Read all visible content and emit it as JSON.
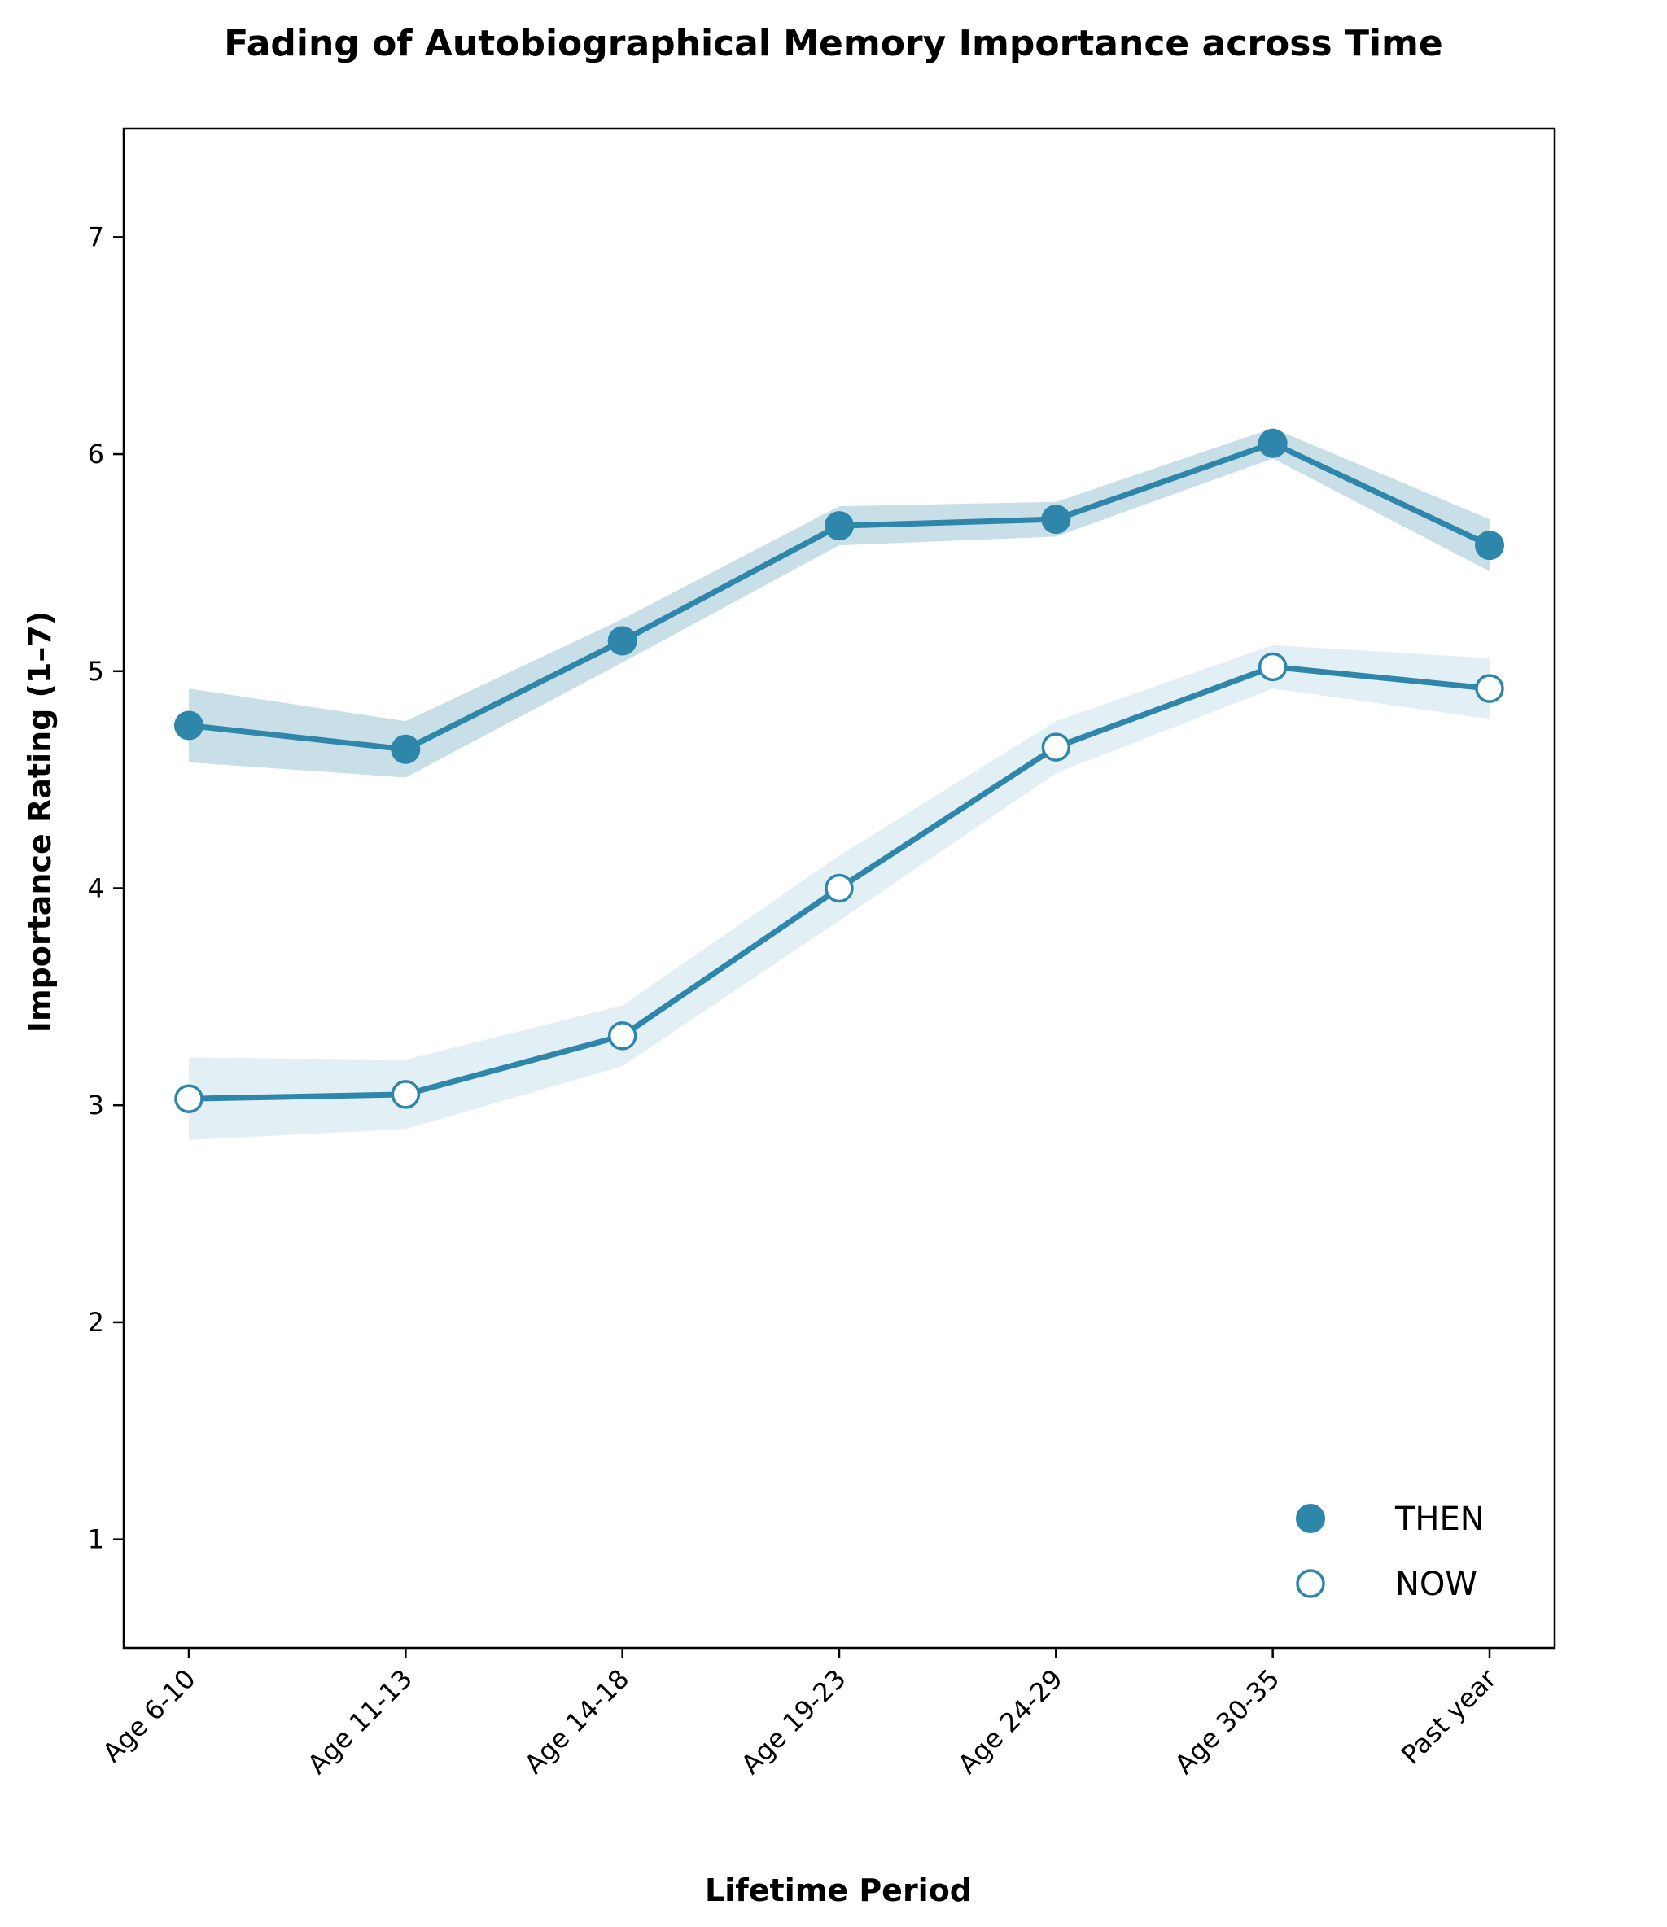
{
  "chart_data": {
    "type": "line",
    "title": "Fading of Autobiographical Memory Importance across Time",
    "xlabel": "Lifetime Period",
    "ylabel": "Importance Rating (1–7)",
    "categories": [
      "Age 6-10",
      "Age 11-13",
      "Age 14-18",
      "Age 19-23",
      "Age 24-29",
      "Age 30-35",
      "Past year"
    ],
    "ylim": [
      0.5,
      7.5
    ],
    "yticks": [
      "1",
      "2",
      "3",
      "4",
      "5",
      "6",
      "7"
    ],
    "grid": false,
    "legend_position": "lower-right",
    "series": [
      {
        "name": "THEN",
        "values": [
          4.75,
          4.64,
          5.14,
          5.67,
          5.7,
          6.05,
          5.58
        ],
        "band_lower": [
          4.58,
          4.51,
          5.04,
          5.58,
          5.62,
          5.98,
          5.46
        ],
        "band_upper": [
          4.92,
          4.77,
          5.24,
          5.76,
          5.78,
          6.12,
          5.7
        ],
        "marker": "filled",
        "band_color": "#c9dfe7"
      },
      {
        "name": "NOW",
        "values": [
          3.03,
          3.05,
          3.32,
          4.0,
          4.65,
          5.02,
          4.92
        ],
        "band_lower": [
          2.84,
          2.89,
          3.18,
          3.85,
          4.53,
          4.92,
          4.78
        ],
        "band_upper": [
          3.22,
          3.21,
          3.46,
          4.15,
          4.77,
          5.12,
          5.06
        ],
        "marker": "hollow",
        "band_color": "#e2eff5"
      }
    ],
    "line_color": "#2e86ab"
  }
}
